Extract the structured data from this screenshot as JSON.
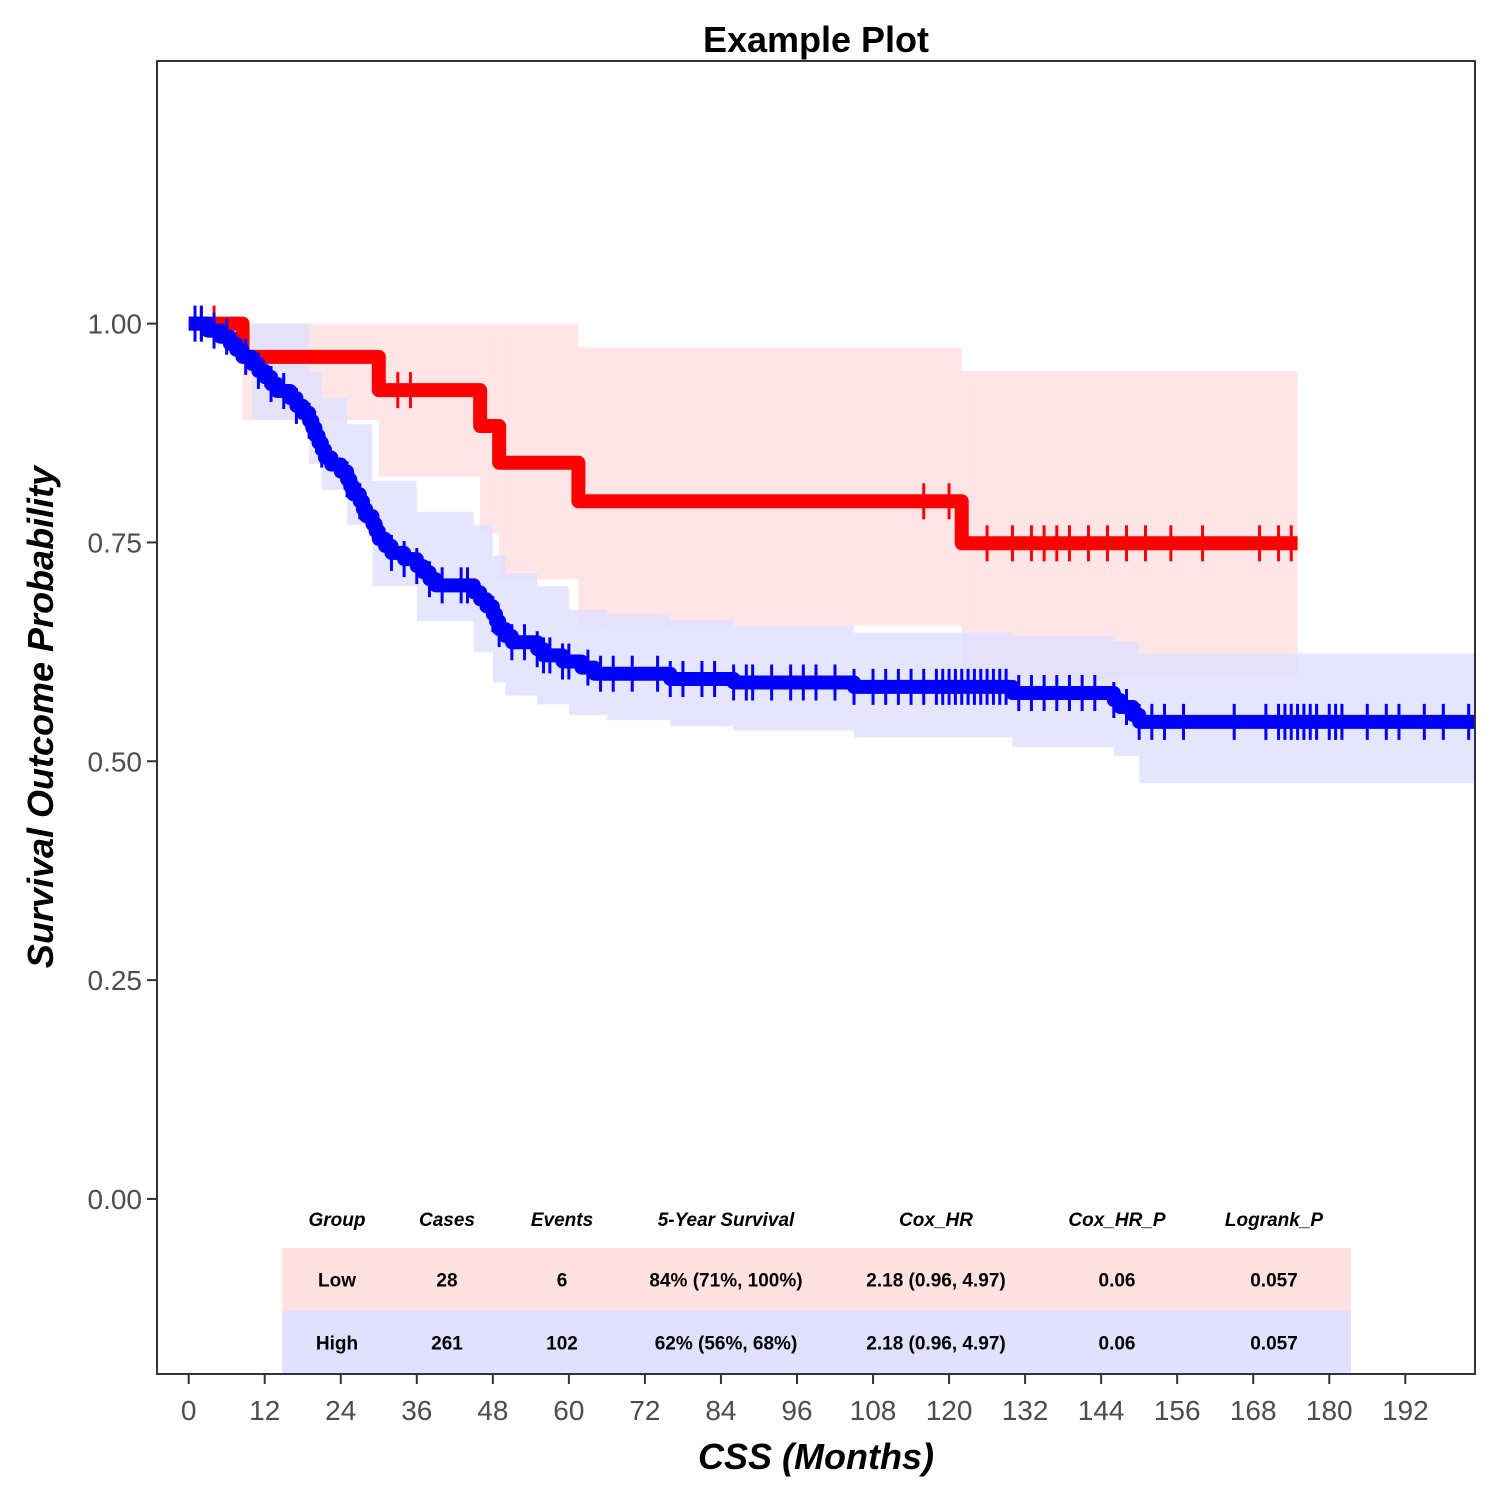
{
  "chart_data": {
    "type": "line",
    "title": "Example Plot",
    "xlabel": "CSS (Months)",
    "ylabel": "Survival Outcome Probability",
    "xlim": [
      -5,
      203
    ],
    "ylim": [
      -0.2,
      1.3
    ],
    "x_ticks": [
      0,
      12,
      24,
      36,
      48,
      60,
      72,
      84,
      96,
      108,
      120,
      132,
      144,
      156,
      168,
      180,
      192
    ],
    "y_ticks": [
      0.0,
      0.25,
      0.5,
      0.75,
      1.0
    ],
    "y_tick_labels": [
      "0.00",
      "0.25",
      "0.50",
      "0.75",
      "1.00"
    ],
    "grid": false,
    "series": [
      {
        "name": "Low",
        "color": "#ff0000",
        "band_color": "#ffe1e1",
        "steps": [
          [
            0,
            1.0
          ],
          [
            8.5,
            0.962
          ],
          [
            30,
            0.924
          ],
          [
            46,
            0.883
          ],
          [
            49,
            0.841
          ],
          [
            61.5,
            0.797
          ],
          [
            122,
            0.749
          ],
          [
            175,
            0.749
          ]
        ],
        "ci": [
          [
            0,
            1.0,
            1.0
          ],
          [
            8.5,
            0.89,
            1.0
          ],
          [
            30,
            0.825,
            1.0
          ],
          [
            46,
            0.76,
            1.0
          ],
          [
            49,
            0.708,
            1.0
          ],
          [
            61.5,
            0.655,
            0.973
          ],
          [
            122,
            0.595,
            0.946
          ],
          [
            175,
            0.595,
            0.946
          ]
        ],
        "censor": [
          2,
          4,
          33,
          35,
          116,
          120,
          126,
          130,
          133,
          135,
          137,
          139,
          142,
          145,
          148,
          151,
          155,
          160,
          169,
          172,
          174
        ]
      },
      {
        "name": "High",
        "color": "#0000ff",
        "band_color": "#e1e1ff",
        "steps": [
          [
            0,
            1.0
          ],
          [
            3,
            0.992
          ],
          [
            5,
            0.985
          ],
          [
            6.5,
            0.977
          ],
          [
            7.5,
            0.97
          ],
          [
            8.5,
            0.962
          ],
          [
            10,
            0.954
          ],
          [
            11,
            0.946
          ],
          [
            12,
            0.939
          ],
          [
            13,
            0.931
          ],
          [
            14,
            0.923
          ],
          [
            16,
            0.915
          ],
          [
            17,
            0.906
          ],
          [
            18,
            0.898
          ],
          [
            19,
            0.889
          ],
          [
            19.5,
            0.881
          ],
          [
            20,
            0.872
          ],
          [
            20.5,
            0.864
          ],
          [
            21,
            0.856
          ],
          [
            21.5,
            0.847
          ],
          [
            22.5,
            0.839
          ],
          [
            24,
            0.831
          ],
          [
            25,
            0.822
          ],
          [
            25.5,
            0.814
          ],
          [
            26,
            0.805
          ],
          [
            27,
            0.797
          ],
          [
            27.5,
            0.788
          ],
          [
            28,
            0.78
          ],
          [
            29,
            0.771
          ],
          [
            29.5,
            0.763
          ],
          [
            30,
            0.754
          ],
          [
            31,
            0.746
          ],
          [
            32,
            0.738
          ],
          [
            34,
            0.731
          ],
          [
            36,
            0.723
          ],
          [
            37,
            0.716
          ],
          [
            38,
            0.708
          ],
          [
            39,
            0.701
          ],
          [
            45,
            0.693
          ],
          [
            46,
            0.685
          ],
          [
            47,
            0.677
          ],
          [
            48,
            0.668
          ],
          [
            48.5,
            0.66
          ],
          [
            49,
            0.651
          ],
          [
            50,
            0.643
          ],
          [
            51,
            0.636
          ],
          [
            55,
            0.628
          ],
          [
            56,
            0.621
          ],
          [
            59,
            0.614
          ],
          [
            62,
            0.607
          ],
          [
            64,
            0.6
          ],
          [
            76,
            0.594
          ],
          [
            86,
            0.59
          ],
          [
            105,
            0.585
          ],
          [
            130,
            0.578
          ],
          [
            146,
            0.57
          ],
          [
            147,
            0.562
          ],
          [
            149,
            0.553
          ],
          [
            150,
            0.545
          ],
          [
            203,
            0.545
          ]
        ],
        "ci": [
          [
            0,
            1.0,
            1.0
          ],
          [
            10,
            0.89,
            1.0
          ],
          [
            19,
            0.84,
            0.945
          ],
          [
            21,
            0.81,
            0.915
          ],
          [
            25,
            0.77,
            0.885
          ],
          [
            29,
            0.7,
            0.82
          ],
          [
            36,
            0.66,
            0.785
          ],
          [
            45,
            0.625,
            0.77
          ],
          [
            48,
            0.59,
            0.735
          ],
          [
            50,
            0.575,
            0.715
          ],
          [
            55,
            0.565,
            0.7
          ],
          [
            60,
            0.553,
            0.673
          ],
          [
            66,
            0.547,
            0.668
          ],
          [
            76,
            0.54,
            0.661
          ],
          [
            86,
            0.535,
            0.655
          ],
          [
            105,
            0.527,
            0.647
          ],
          [
            130,
            0.516,
            0.643
          ],
          [
            146,
            0.506,
            0.637
          ],
          [
            150,
            0.475,
            0.623
          ],
          [
            203,
            0.475,
            0.623
          ]
        ],
        "censor": [
          1,
          2,
          4,
          6,
          9,
          11,
          13,
          15,
          17,
          19,
          21,
          25,
          27,
          32,
          34,
          36,
          38,
          40,
          43,
          44,
          48,
          49,
          51,
          53,
          55,
          56,
          57,
          59,
          60,
          63,
          65,
          67,
          70,
          74,
          76,
          78,
          81,
          83,
          86,
          88,
          89,
          92,
          95,
          97,
          99,
          102,
          105,
          108,
          110,
          112,
          114,
          116,
          118,
          119,
          120,
          121,
          122,
          123,
          124,
          125,
          126,
          127,
          128,
          129,
          131,
          133,
          135,
          137,
          139,
          141,
          143,
          146,
          148,
          150,
          152,
          154,
          157,
          165,
          170,
          172,
          173,
          174,
          175,
          176,
          177,
          178,
          180,
          181,
          182,
          186,
          189,
          191,
          195,
          198,
          202
        ]
      }
    ],
    "table": {
      "headers": [
        "Group",
        "Cases",
        "Events",
        "5-Year Survival",
        "Cox_HR",
        "Cox_HR_P",
        "Logrank_P"
      ],
      "rows": [
        {
          "cells": [
            "Low",
            "28",
            "6",
            "84% (71%, 100%)",
            "2.18 (0.96, 4.97)",
            "0.06",
            "0.057"
          ],
          "color": "#ffe1e1"
        },
        {
          "cells": [
            "High",
            "261",
            "102",
            "62% (56%, 68%)",
            "2.18 (0.96, 4.97)",
            "0.06",
            "0.057"
          ],
          "color": "#e1e1ff"
        }
      ]
    }
  }
}
